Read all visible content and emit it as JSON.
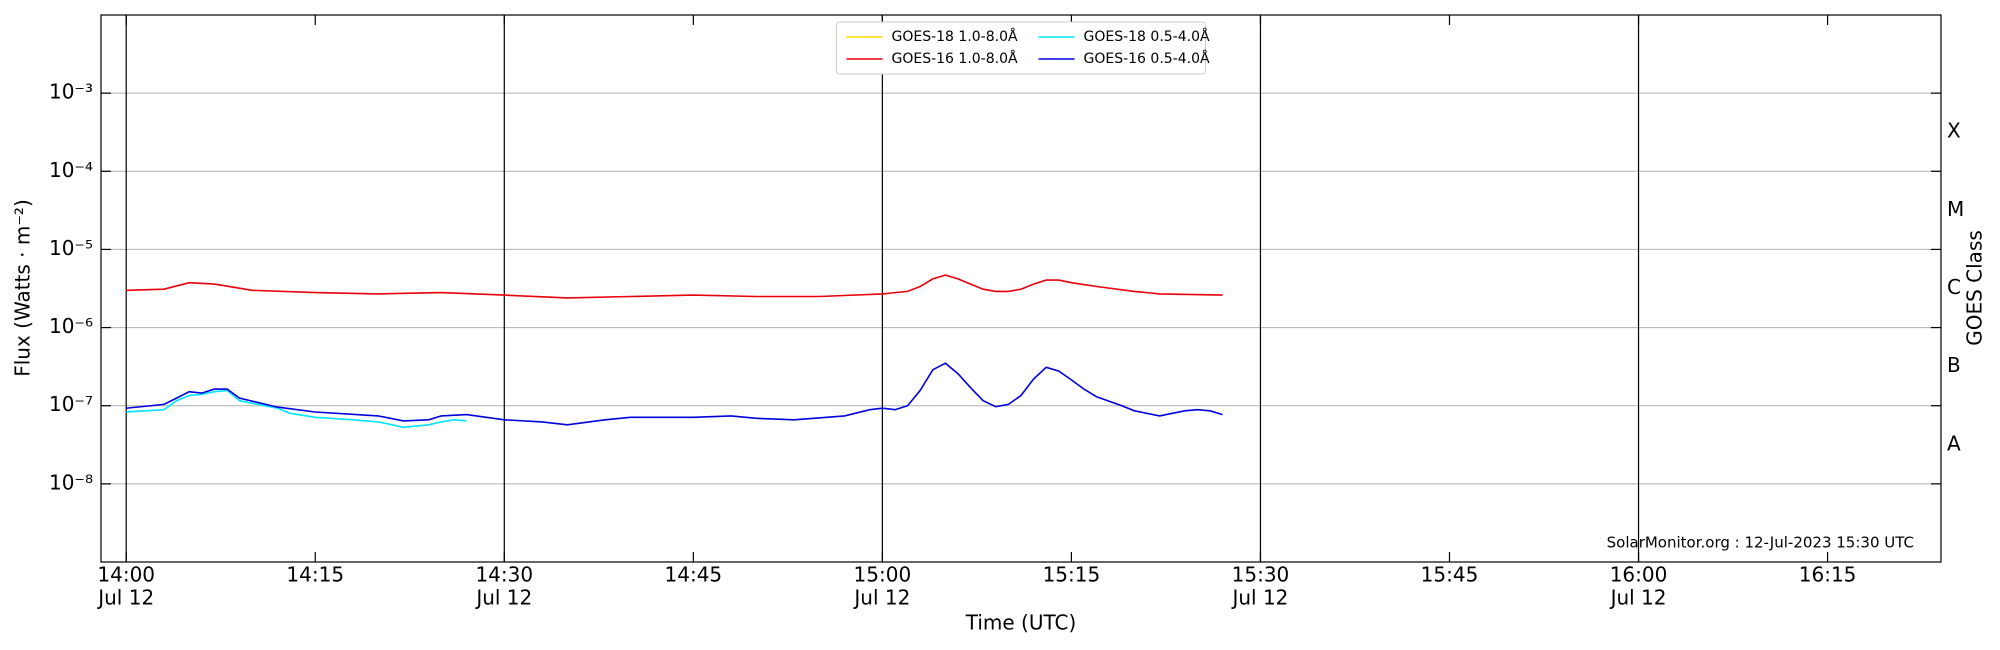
{
  "chart_data": {
    "type": "line",
    "xlabel": "Time (UTC)",
    "ylabel": "Flux (Watts · m⁻²)",
    "y2label": "GOES Class",
    "annotation": "SolarMonitor.org : 12-Jul-2023 15:30 UTC",
    "log_scale": true,
    "grid": true,
    "legend": "upper center",
    "xlim": [
      "13:58",
      "16:24"
    ],
    "xticks": [
      "14:00",
      "14:15",
      "14:30",
      "14:45",
      "15:00",
      "15:15",
      "15:30",
      "15:45",
      "16:00",
      "16:15"
    ],
    "x_date_labels": [
      "Jul 12",
      null,
      "Jul 12",
      null,
      "Jul 12",
      null,
      "Jul 12",
      null,
      "Jul 12",
      null
    ],
    "vlines": [
      "14:00",
      "14:30",
      "15:00",
      "15:30",
      "16:00"
    ],
    "ylim": [
      1e-09,
      0.01
    ],
    "yticks": [
      {
        "value": 1e-08,
        "label": "10⁻⁸"
      },
      {
        "value": 1e-07,
        "label": "10⁻⁷"
      },
      {
        "value": 1e-06,
        "label": "10⁻⁶"
      },
      {
        "value": 1e-05,
        "label": "10⁻⁵"
      },
      {
        "value": 0.0001,
        "label": "10⁻⁴"
      },
      {
        "value": 0.001,
        "label": "10⁻³"
      }
    ],
    "class_labels": [
      {
        "value": 3.16e-08,
        "label": "A"
      },
      {
        "value": 3.16e-07,
        "label": "B"
      },
      {
        "value": 3.16e-06,
        "label": "C"
      },
      {
        "value": 3.16e-05,
        "label": "M"
      },
      {
        "value": 0.000316,
        "label": "X"
      }
    ],
    "series": [
      {
        "name": "GOES-18 1.0-8.0Å",
        "color": "#ffd700",
        "x": [],
        "values": []
      },
      {
        "name": "GOES-16 1.0-8.0Å",
        "color": "#e8000b",
        "x": [
          "14:00",
          "14:03",
          "14:05",
          "14:07",
          "14:10",
          "14:15",
          "14:20",
          "14:25",
          "14:30",
          "14:35",
          "14:40",
          "14:45",
          "14:50",
          "14:55",
          "15:00",
          "15:02",
          "15:03",
          "15:04",
          "15:05",
          "15:06",
          "15:07",
          "15:08",
          "15:09",
          "15:10",
          "15:11",
          "15:12",
          "15:13",
          "15:14",
          "15:15",
          "15:17",
          "15:20",
          "15:22",
          "15:27"
        ],
        "values": [
          3e-06,
          3.1e-06,
          3.75e-06,
          3.6e-06,
          3e-06,
          2.8e-06,
          2.7e-06,
          2.8e-06,
          2.6e-06,
          2.4e-06,
          2.5e-06,
          2.6e-06,
          2.5e-06,
          2.5e-06,
          2.7e-06,
          2.9e-06,
          3.35e-06,
          4.2e-06,
          4.7e-06,
          4.2e-06,
          3.6e-06,
          3.1e-06,
          2.9e-06,
          2.9e-06,
          3.1e-06,
          3.6e-06,
          4.05e-06,
          4.05e-06,
          3.75e-06,
          3.35e-06,
          2.9e-06,
          2.7e-06,
          2.6e-06
        ]
      },
      {
        "name": "GOES-18 0.5-4.0Å",
        "color": "#00e5ff",
        "x": [
          "14:00",
          "14:03",
          "14:04",
          "14:05",
          "14:06",
          "14:07",
          "14:08",
          "14:09",
          "14:12",
          "14:13",
          "14:15",
          "14:18",
          "14:20",
          "14:22",
          "14:24",
          "14:25",
          "14:26",
          "14:27"
        ],
        "values": [
          8.3e-08,
          8.9e-08,
          1.16e-07,
          1.35e-07,
          1.4e-07,
          1.51e-07,
          1.57e-07,
          1.16e-07,
          9.3e-08,
          8e-08,
          7.1e-08,
          6.6e-08,
          6.2e-08,
          5.3e-08,
          5.7e-08,
          6.2e-08,
          6.6e-08,
          6.4e-08
        ]
      },
      {
        "name": "GOES-16 0.5-4.0Å",
        "color": "#0000dd",
        "x": [
          "14:00",
          "14:03",
          "14:04",
          "14:05",
          "14:06",
          "14:07",
          "14:08",
          "14:09",
          "14:12",
          "14:15",
          "14:20",
          "14:22",
          "14:24",
          "14:25",
          "14:27",
          "14:30",
          "14:33",
          "14:35",
          "14:38",
          "14:40",
          "14:45",
          "14:48",
          "14:50",
          "14:53",
          "14:57",
          "14:59",
          "15:00",
          "15:01",
          "15:02",
          "15:03",
          "15:04",
          "15:05",
          "15:06",
          "15:07",
          "15:08",
          "15:09",
          "15:10",
          "15:11",
          "15:12",
          "15:13",
          "15:14",
          "15:15",
          "15:16",
          "15:17",
          "15:19",
          "15:20",
          "15:22",
          "15:24",
          "15:25",
          "15:26",
          "15:27"
        ],
        "values": [
          9.3e-08,
          1.04e-07,
          1.25e-07,
          1.51e-07,
          1.45e-07,
          1.63e-07,
          1.63e-07,
          1.25e-07,
          9.6e-08,
          8.3e-08,
          7.4e-08,
          6.4e-08,
          6.6e-08,
          7.4e-08,
          7.7e-08,
          6.6e-08,
          6.2e-08,
          5.7e-08,
          6.6e-08,
          7.1e-08,
          7.1e-08,
          7.4e-08,
          6.9e-08,
          6.6e-08,
          7.4e-08,
          8.9e-08,
          9.3e-08,
          8.9e-08,
          1e-07,
          1.57e-07,
          2.88e-07,
          3.5e-07,
          2.57e-07,
          1.7e-07,
          1.16e-07,
          9.7e-08,
          1.04e-07,
          1.35e-07,
          2.2e-07,
          3.1e-07,
          2.77e-07,
          2.14e-07,
          1.63e-07,
          1.3e-07,
          1e-07,
          8.6e-08,
          7.4e-08,
          8.6e-08,
          8.9e-08,
          8.6e-08,
          7.7e-08
        ]
      }
    ]
  }
}
